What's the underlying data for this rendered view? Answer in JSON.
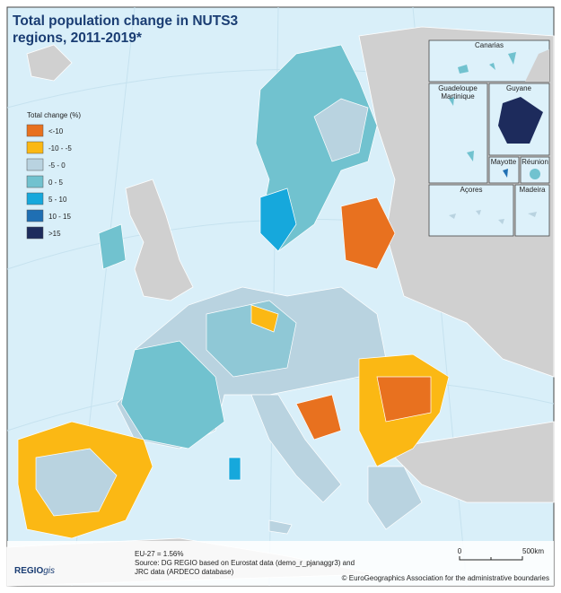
{
  "title": "Total population change in NUTS3 regions, 2011-2019*",
  "legend": {
    "title": "Total change (%)",
    "items": [
      {
        "label": "<-10",
        "color": "#e8711f"
      },
      {
        "label": "-10 - -5",
        "color": "#fbb814"
      },
      {
        "label": "-5 - 0",
        "color": "#b9d3e0"
      },
      {
        "label": "0 - 5",
        "color": "#71c2cf"
      },
      {
        "label": "5 - 10",
        "color": "#16a8dc"
      },
      {
        "label": "10 - 15",
        "color": "#1f6fb3"
      },
      {
        "label": ">15",
        "color": "#1d2b5c"
      }
    ]
  },
  "insets": {
    "canarias": "Canarias",
    "guadeloupe": "Guadeloupe",
    "martinique": "Martinique",
    "guyane": "Guyane",
    "mayotte": "Mayotte",
    "reunion": "Réunion",
    "acores": "Açores",
    "madeira": "Madeira"
  },
  "notes": [
    "EU-27 = 1.56%",
    "Source: DG REGIO based on Eurostat data (demo_r_pjanaggr3) and",
    "JRC data (ARDECO database)"
  ],
  "credit": "© EuroGeographics Association for the administrative boundaries",
  "logo": {
    "main": "REGIO",
    "suffix": "gis"
  },
  "scale": {
    "start": "0",
    "end": "500km"
  }
}
